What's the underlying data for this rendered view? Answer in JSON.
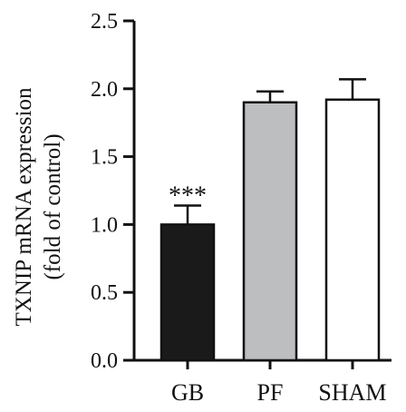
{
  "chart_data": {
    "type": "bar",
    "categories": [
      "GB",
      "PF",
      "SHAM"
    ],
    "values": [
      1.0,
      1.9,
      1.92
    ],
    "errors": [
      0.14,
      0.08,
      0.15
    ],
    "colors": [
      "#1a1a1a",
      "#bdbec0",
      "#ffffff"
    ],
    "annotations": [
      "***",
      "",
      ""
    ],
    "ylabel_line1": "TXNIP mRNA expression",
    "ylabel_line2": "(fold of control)",
    "ylim": [
      0,
      2.5
    ],
    "yticks": [
      0.0,
      0.5,
      1.0,
      1.5,
      2.0,
      2.5
    ],
    "ytick_labels": [
      "0.0",
      "0.5",
      "1.0",
      "1.5",
      "2.0",
      "2.5"
    ],
    "grid": false
  }
}
